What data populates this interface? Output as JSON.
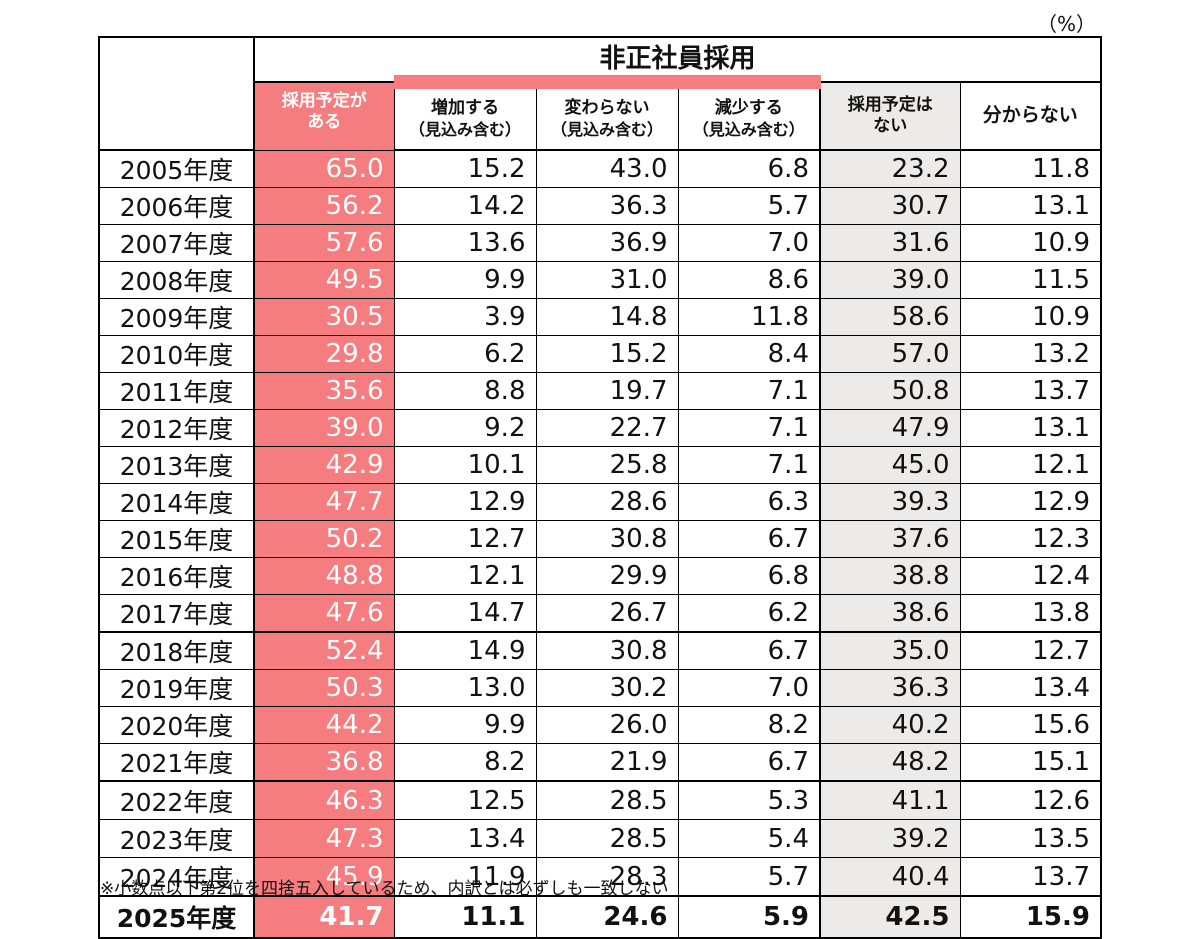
{
  "unit_label": "（%）",
  "table": {
    "group_header": "非正社員採用",
    "columns": [
      {
        "label": "採用予定がある",
        "line1": "採用予定が",
        "line2": "ある"
      },
      {
        "label": "増加する",
        "line1": "増加する",
        "line2": "（見込み含む）"
      },
      {
        "label": "変わらない",
        "line1": "変わらない",
        "line2": "（見込み含む）"
      },
      {
        "label": "減少する",
        "line1": "減少する",
        "line2": "（見込み含む）"
      },
      {
        "label": "採用予定はない",
        "line1": "採用予定は",
        "line2": "ない"
      },
      {
        "label": "分からない",
        "line1": "分からない",
        "line2": ""
      }
    ],
    "rows": [
      {
        "year": "2005年度",
        "values": [
          "65.0",
          "15.2",
          "43.0",
          "6.8",
          "23.2",
          "11.8"
        ]
      },
      {
        "year": "2006年度",
        "values": [
          "56.2",
          "14.2",
          "36.3",
          "5.7",
          "30.7",
          "13.1"
        ]
      },
      {
        "year": "2007年度",
        "values": [
          "57.6",
          "13.6",
          "36.9",
          "7.0",
          "31.6",
          "10.9"
        ]
      },
      {
        "year": "2008年度",
        "values": [
          "49.5",
          "9.9",
          "31.0",
          "8.6",
          "39.0",
          "11.5"
        ]
      },
      {
        "year": "2009年度",
        "values": [
          "30.5",
          "3.9",
          "14.8",
          "11.8",
          "58.6",
          "10.9"
        ]
      },
      {
        "year": "2010年度",
        "values": [
          "29.8",
          "6.2",
          "15.2",
          "8.4",
          "57.0",
          "13.2"
        ]
      },
      {
        "year": "2011年度",
        "values": [
          "35.6",
          "8.8",
          "19.7",
          "7.1",
          "50.8",
          "13.7"
        ]
      },
      {
        "year": "2012年度",
        "values": [
          "39.0",
          "9.2",
          "22.7",
          "7.1",
          "47.9",
          "13.1"
        ]
      },
      {
        "year": "2013年度",
        "values": [
          "42.9",
          "10.1",
          "25.8",
          "7.1",
          "45.0",
          "12.1"
        ]
      },
      {
        "year": "2014年度",
        "values": [
          "47.7",
          "12.9",
          "28.6",
          "6.3",
          "39.3",
          "12.9"
        ]
      },
      {
        "year": "2015年度",
        "values": [
          "50.2",
          "12.7",
          "30.8",
          "6.7",
          "37.6",
          "12.3"
        ]
      },
      {
        "year": "2016年度",
        "values": [
          "48.8",
          "12.1",
          "29.9",
          "6.8",
          "38.8",
          "12.4"
        ]
      },
      {
        "year": "2017年度",
        "values": [
          "47.6",
          "14.7",
          "26.7",
          "6.2",
          "38.6",
          "13.8"
        ]
      },
      {
        "year": "2018年度",
        "values": [
          "52.4",
          "14.9",
          "30.8",
          "6.7",
          "35.0",
          "12.7"
        ]
      },
      {
        "year": "2019年度",
        "values": [
          "50.3",
          "13.0",
          "30.2",
          "7.0",
          "36.3",
          "13.4"
        ]
      },
      {
        "year": "2020年度",
        "values": [
          "44.2",
          "9.9",
          "26.0",
          "8.2",
          "40.2",
          "15.6"
        ]
      },
      {
        "year": "2021年度",
        "values": [
          "36.8",
          "8.2",
          "21.9",
          "6.7",
          "48.2",
          "15.1"
        ]
      },
      {
        "year": "2022年度",
        "values": [
          "46.3",
          "12.5",
          "28.5",
          "5.3",
          "41.1",
          "12.6"
        ]
      },
      {
        "year": "2023年度",
        "values": [
          "47.3",
          "13.4",
          "28.5",
          "5.4",
          "39.2",
          "13.5"
        ]
      },
      {
        "year": "2024年度",
        "values": [
          "45.9",
          "11.9",
          "28.3",
          "5.7",
          "40.4",
          "13.7"
        ]
      },
      {
        "year": "2025年度",
        "values": [
          "41.7",
          "11.1",
          "24.6",
          "5.9",
          "42.5",
          "15.9"
        ]
      }
    ]
  },
  "footnote": "※小数点以下第2位を四捨五入しているため、内訳とは必ずしも一致しない",
  "colors": {
    "highlight_pink": "#f57c7f",
    "highlight_gray": "#ecebe9"
  }
}
